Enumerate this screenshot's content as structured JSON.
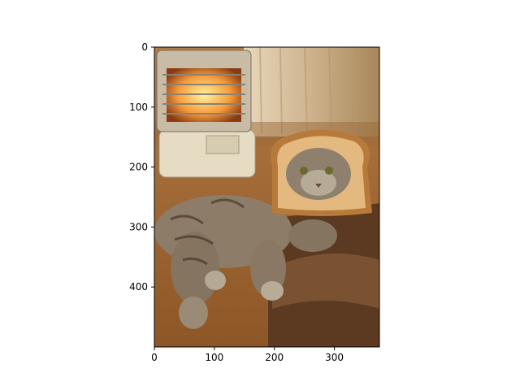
{
  "chart_data": {
    "type": "image",
    "xlim": [
      0,
      375
    ],
    "ylim": [
      500,
      0
    ],
    "xticks": [
      0,
      100,
      200,
      300
    ],
    "yticks": [
      0,
      100,
      200,
      300,
      400
    ]
  }
}
